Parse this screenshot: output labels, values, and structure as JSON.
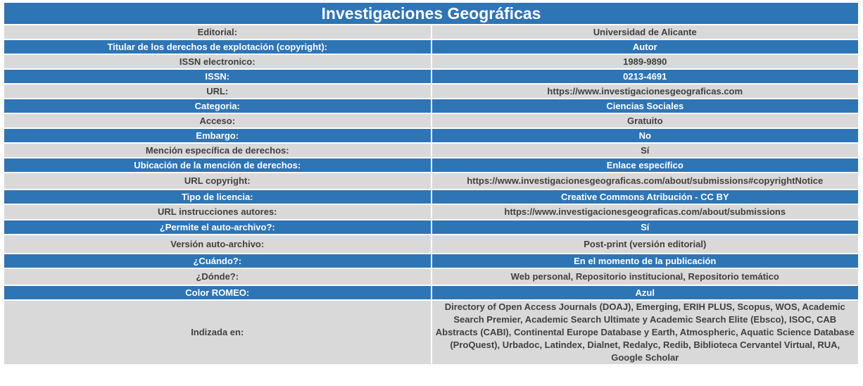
{
  "title": "Investigaciones Geográficas",
  "rows": [
    {
      "label": "Editorial:",
      "value": "Universidad de Alicante"
    },
    {
      "label": "Titular de los derechos de explotación (copyright):",
      "value": "Autor"
    },
    {
      "label": "ISSN electronico:",
      "value": "1989-9890"
    },
    {
      "label": "ISSN:",
      "value": "0213-4691"
    },
    {
      "label": "URL:",
      "value": "https://www.investigacionesgeograficas.com"
    },
    {
      "label": "Categoria:",
      "value": "Ciencias Sociales"
    },
    {
      "label": "Acceso:",
      "value": "Gratuito"
    },
    {
      "label": "Embargo:",
      "value": "No"
    },
    {
      "label": "Mención específica de derechos:",
      "value": "Sí"
    },
    {
      "label": "Ubicación de la mención de derechos:",
      "value": "Enlace específico"
    },
    {
      "label": "URL copyright:",
      "value": "https://www.investigacionesgeograficas.com/about/submissions#copyrightNotice"
    },
    {
      "label": "Tipo de licencia:",
      "value": "Creative Commons Atribución - CC BY"
    },
    {
      "label": "URL instrucciones autores:",
      "value": "https://www.investigacionesgeograficas.com/about/submissions"
    },
    {
      "label": "¿Permite el auto-archivo?:",
      "value": "Sí"
    },
    {
      "label": "Versión auto-archivo:",
      "value": "Post-print (versión editorial)"
    },
    {
      "label": "¿Cuándo?:",
      "value": "En el momento de la publicación"
    },
    {
      "label": "¿Dónde?:",
      "value": "Web personal, Repositorio institucional, Repositorio temático"
    },
    {
      "label": "Color ROMEO:",
      "value": "Azul"
    },
    {
      "label": "Indizada en:",
      "value": "Directory of Open Access Journals (DOAJ), Emerging, ERIH PLUS, Scopus, WOS, Academic Search Premier, Academic Search Ultimate y Academic Search Elite (Ebsco), ISOC, CAB Abstracts (CABI), Continental Europe Database y Earth, Atmospheric, Aquatic Science Database (ProQuest), Urbadoc, Latindex, Dialnet, Redalyc, Redib, Biblioteca Cervantel Virtual, RUA, Google Scholar"
    }
  ],
  "colors": {
    "header_blue": "#2e75b6",
    "row_gray": "#d9d9d9"
  }
}
